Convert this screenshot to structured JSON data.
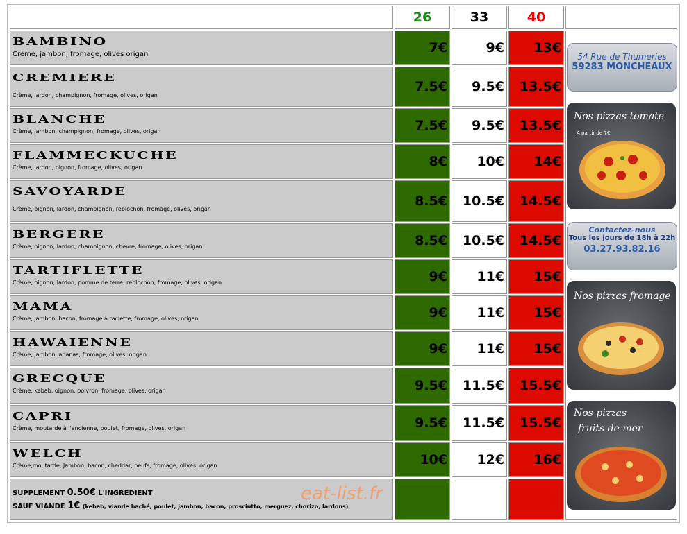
{
  "header": {
    "columns": [
      "26",
      "33",
      "40"
    ]
  },
  "menu": {
    "rows": [
      {
        "name": "BAMBINO",
        "ingredients": "Crème, jambon, fromage, olives origan",
        "prices": [
          "7€",
          "9€",
          "13€"
        ]
      },
      {
        "name": "CREMIERE",
        "ingredients": "Crème, lardon, champignon, fromage, olives, origan",
        "prices": [
          "7.5€",
          "9.5€",
          "13.5€"
        ]
      },
      {
        "name": "BLANCHE",
        "ingredients": "Crème, jambon, champignon, fromage, olives, origan",
        "prices": [
          "7.5€",
          "9.5€",
          "13.5€"
        ]
      },
      {
        "name": "FLAMMECKUCHE",
        "ingredients": "Crème, lardon, oignon, fromage, olives, origan",
        "prices": [
          "8€",
          "10€",
          "14€"
        ]
      },
      {
        "name": "SAVOYARDE",
        "ingredients": "Crème, oignon, lardon, champignon, reblochon, fromage, olives, origan",
        "prices": [
          "8.5€",
          "10.5€",
          "14.5€"
        ]
      },
      {
        "name": "BERGERE",
        "ingredients": "Crème, oignon, lardon, champignon, chèvre, fromage, olives, origan",
        "prices": [
          "8.5€",
          "10.5€",
          "14.5€"
        ]
      },
      {
        "name": "TARTIFLETTE",
        "ingredients": "Crème, oignon, lardon, pomme de terre, reblochon,  fromage, olives, origan",
        "prices": [
          "9€",
          "11€",
          "15€"
        ]
      },
      {
        "name": "MAMA",
        "ingredients": "Crème, jambon, bacon, fromage à raclette, fromage, olives, origan",
        "prices": [
          "9€",
          "11€",
          "15€"
        ]
      },
      {
        "name": "HAWAIENNE",
        "ingredients": "Crème, jambon, ananas, fromage, olives, origan",
        "prices": [
          "9€",
          "11€",
          "15€"
        ]
      },
      {
        "name": "GRECQUE",
        "ingredients": "Crème, kebab, oignon, poivron, fromage, olives, origan",
        "prices": [
          "9.5€",
          "11.5€",
          "15.5€"
        ]
      },
      {
        "name": "CAPRI",
        "ingredients": "Crème, moutarde à l'ancienne, poulet, fromage, olives, origan",
        "prices": [
          "9.5€",
          "11.5€",
          "15.5€"
        ]
      },
      {
        "name": "WELCH",
        "ingredients": "Crème,moutarde, Jambon, bacon, cheddar, oeufs, fromage, olives, origan",
        "prices": [
          "10€",
          "12€",
          "16€"
        ]
      }
    ]
  },
  "supplement": {
    "line1": [
      "SUPPLEMENT",
      "0.50€",
      "L'INGREDIENT"
    ],
    "line2": [
      "SAUF VIANDE",
      "1€",
      "(kebab, viande haché, poulet, jambon, bacon, prosciutto, merguez, chorizo, lardons)"
    ]
  },
  "watermark": "eat-list.fr",
  "sidebar": {
    "address": [
      "54 Rue de Thumeries",
      "59283 MONCHEAUX"
    ],
    "tomate": {
      "title": "Nos pizzas tomate",
      "note": "A partir de 7€"
    },
    "contact": [
      "Contactez-nous",
      "Tous les jours de 18h à 22h",
      "03.27.93.82.16"
    ],
    "fromage": {
      "title": "Nos pizzas fromage"
    },
    "mer": {
      "title": [
        "Nos pizzas",
        "fruits de mer"
      ]
    }
  }
}
